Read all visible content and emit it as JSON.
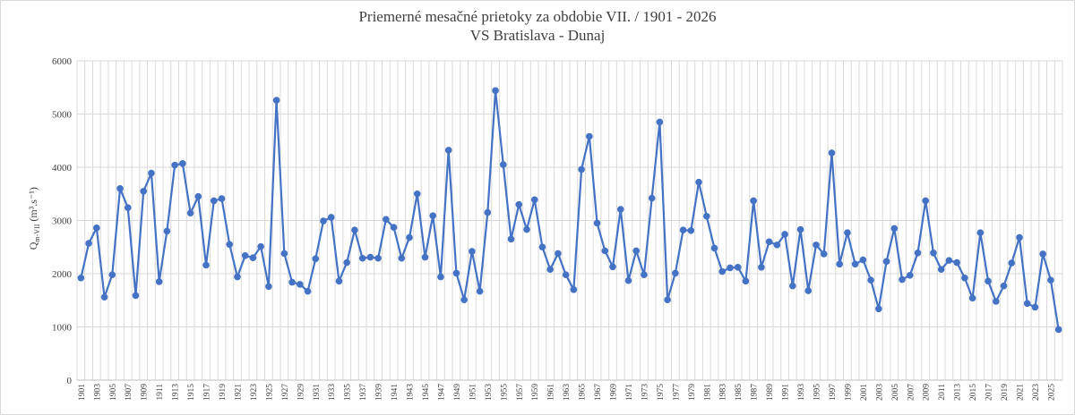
{
  "chart_data": {
    "type": "line",
    "title": "Priemerné mesačné prietoky za obdobie VII. / 1901 - 2026",
    "subtitle": "VS Bratislava - Dunaj",
    "ylabel": "Q",
    "ylabel_sub": "m-VII",
    "ylabel_unit": "(m³.s⁻¹)",
    "ylim": [
      0,
      6000
    ],
    "yticks": [
      "0",
      "1000",
      "2000",
      "3000",
      "4000",
      "5000",
      "6000"
    ],
    "x_start": 1901,
    "x_end": 2026,
    "x_tick_labels": [
      "1901",
      "1903",
      "1905",
      "1907",
      "1909",
      "1911",
      "1913",
      "1915",
      "1917",
      "1919",
      "1921",
      "1923",
      "1925",
      "1927",
      "1929",
      "1931",
      "1933",
      "1935",
      "1937",
      "1939",
      "1941",
      "1943",
      "1945",
      "1947",
      "1949",
      "1951",
      "1953",
      "1955",
      "1957",
      "1959",
      "1961",
      "1963",
      "1965",
      "1967",
      "1969",
      "1971",
      "1973",
      "1975",
      "1977",
      "1979",
      "1981",
      "1983",
      "1985",
      "1987",
      "1989",
      "1991",
      "1993",
      "1995",
      "1997",
      "1999",
      "2001",
      "2003",
      "2005",
      "2007",
      "2009",
      "2011",
      "2013",
      "2015",
      "2017",
      "2019",
      "2021",
      "2023",
      "2025"
    ],
    "grid": true,
    "color": "#4472c4",
    "series": [
      {
        "values": [
          1920,
          2570,
          2860,
          1560,
          1980,
          3600,
          3240,
          1590,
          3550,
          3890,
          1850,
          2800,
          4040,
          4070,
          3140,
          3450,
          2160,
          3370,
          3410,
          2550,
          1940,
          2340,
          2300,
          2510,
          1760,
          5260,
          2380,
          1840,
          1800,
          1670,
          2280,
          2990,
          3060,
          1860,
          2210,
          2820,
          2290,
          2310,
          2290,
          3020,
          2870,
          2290,
          2680,
          3500,
          2310,
          3090,
          1940,
          4320,
          2010,
          1510,
          2420,
          1670,
          3150,
          5440,
          4050,
          2650,
          3300,
          2830,
          3390,
          2500,
          2080,
          2380,
          1980,
          1700,
          3960,
          4580,
          2950,
          2430,
          2130,
          3210,
          1870,
          2430,
          1980,
          3420,
          4850,
          1510,
          2010,
          2820,
          2810,
          3720,
          3080,
          2480,
          2040,
          2110,
          2120,
          1860,
          3370,
          2120,
          2600,
          2540,
          2740,
          1770,
          2830,
          1680,
          2540,
          2370,
          4270,
          2180,
          2770,
          2180,
          2260,
          1880,
          1340,
          2230,
          2850,
          1890,
          1970,
          2390,
          3370,
          2390,
          2080,
          2250,
          2210,
          1920,
          1540,
          2770,
          1860,
          1480,
          1770,
          2200,
          2680,
          1440,
          1370,
          2370,
          1880,
          950
        ]
      }
    ]
  }
}
